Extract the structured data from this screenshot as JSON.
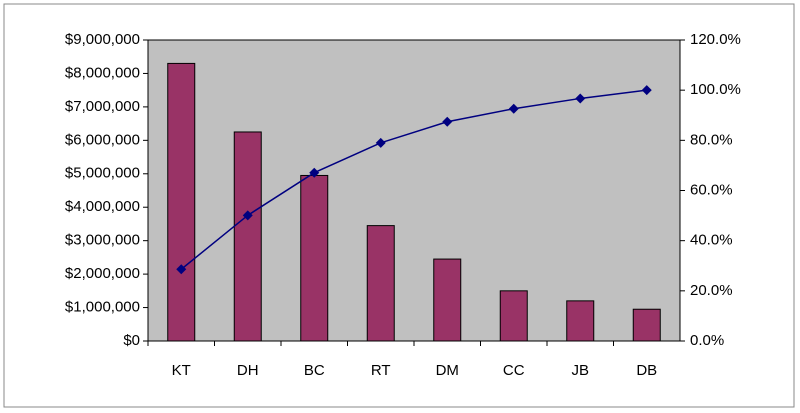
{
  "chart_data": {
    "type": "pareto",
    "categories": [
      "KT",
      "DH",
      "BC",
      "RT",
      "DM",
      "CC",
      "JB",
      "DB"
    ],
    "series": [
      {
        "type": "bar",
        "color": "#993366",
        "values": [
          8300000,
          6250000,
          4950000,
          3450000,
          2450000,
          1500000,
          1200000,
          950000
        ]
      },
      {
        "type": "line",
        "axis": "y2",
        "color": "#000080",
        "values": [
          28.6,
          50.1,
          67.1,
          79.0,
          87.4,
          92.6,
          96.7,
          100
        ]
      }
    ],
    "ylim": [
      0,
      9000000
    ],
    "yticks": [
      {
        "value": 0,
        "label": "$0"
      },
      {
        "value": 1000000,
        "label": "$1,000,000"
      },
      {
        "value": 2000000,
        "label": "$2,000,000"
      },
      {
        "value": 3000000,
        "label": "$3,000,000"
      },
      {
        "value": 4000000,
        "label": "$4,000,000"
      },
      {
        "value": 5000000,
        "label": "$5,000,000"
      },
      {
        "value": 6000000,
        "label": "$6,000,000"
      },
      {
        "value": 7000000,
        "label": "$7,000,000"
      },
      {
        "value": 8000000,
        "label": "$8,000,000"
      },
      {
        "value": 9000000,
        "label": "$9,000,000"
      }
    ],
    "y2lim": [
      0,
      120
    ],
    "y2ticks": [
      {
        "value": 0,
        "label": "0.0%"
      },
      {
        "value": 20,
        "label": "20.0%"
      },
      {
        "value": 40,
        "label": "40.0%"
      },
      {
        "value": 60,
        "label": "60.0%"
      },
      {
        "value": 80,
        "label": "80.0%"
      },
      {
        "value": 100,
        "label": "100.0%"
      },
      {
        "value": 120,
        "label": "120.0%"
      }
    ],
    "plot_background": "#c0c0c0"
  }
}
